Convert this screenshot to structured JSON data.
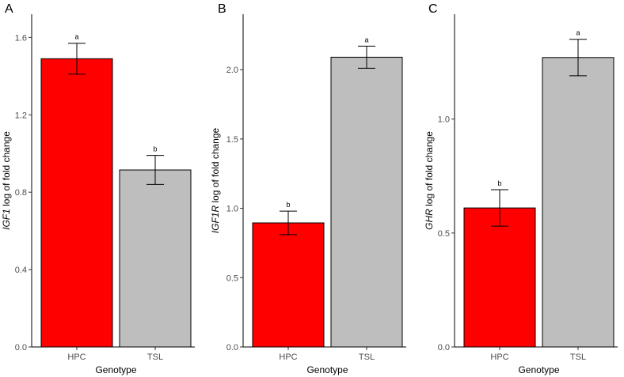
{
  "chart_data": [
    {
      "type": "bar",
      "panel": "A",
      "categories": [
        "HPC",
        "TSL"
      ],
      "values": [
        1.49,
        0.915
      ],
      "errors": [
        0.08,
        0.075
      ],
      "significance": [
        "a",
        "b"
      ],
      "colors": [
        "#ff0000",
        "#bebebe"
      ],
      "xlabel": "Genotype",
      "ylabel_gene": "IGF1",
      "ylabel_rest": "log of fold change",
      "ylim": [
        0,
        1.72
      ],
      "yticks": [
        "0.0",
        "0.4",
        "0.8",
        "1.2",
        "1.6"
      ]
    },
    {
      "type": "bar",
      "panel": "B",
      "categories": [
        "HPC",
        "TSL"
      ],
      "values": [
        0.895,
        2.09
      ],
      "errors": [
        0.085,
        0.08
      ],
      "significance": [
        "b",
        "a"
      ],
      "colors": [
        "#ff0000",
        "#bebebe"
      ],
      "xlabel": "Genotype",
      "ylabel_gene": "IGF1R",
      "ylabel_rest": "log of fold change",
      "ylim": [
        0,
        2.4
      ],
      "yticks": [
        "0.0",
        "0.5",
        "1.0",
        "1.5",
        "2.0"
      ]
    },
    {
      "type": "bar",
      "panel": "C",
      "categories": [
        "HPC",
        "TSL"
      ],
      "values": [
        0.61,
        1.27
      ],
      "errors": [
        0.08,
        0.08
      ],
      "significance": [
        "b",
        "a"
      ],
      "colors": [
        "#ff0000",
        "#bebebe"
      ],
      "xlabel": "Genotype",
      "ylabel_gene": "GHR",
      "ylabel_rest": "log of fold change",
      "ylim": [
        0,
        1.46
      ],
      "yticks": [
        "0.0",
        "0.5",
        "1.0"
      ]
    }
  ]
}
